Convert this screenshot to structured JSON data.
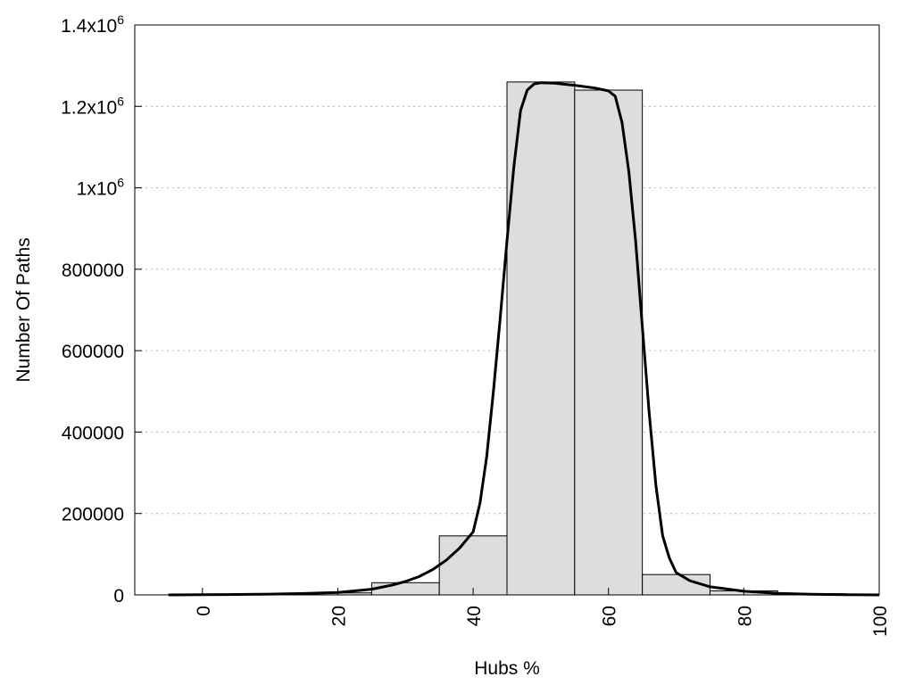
{
  "chart_data": {
    "type": "bar",
    "title": "",
    "xlabel": "Hubs %",
    "ylabel": "Number Of Paths",
    "xlim": [
      -10,
      100
    ],
    "ylim": [
      0,
      1400000
    ],
    "grid": "horizontal dotted",
    "bar_color": "#dddddd",
    "x_ticks": [
      {
        "value": 0,
        "label": "0"
      },
      {
        "value": 20,
        "label": "20"
      },
      {
        "value": 40,
        "label": "40"
      },
      {
        "value": 60,
        "label": "60"
      },
      {
        "value": 80,
        "label": "80"
      },
      {
        "value": 100,
        "label": "100"
      }
    ],
    "y_ticks": [
      {
        "value": 0,
        "base": "0",
        "exp": ""
      },
      {
        "value": 200000,
        "base": "200000",
        "exp": ""
      },
      {
        "value": 400000,
        "base": "400000",
        "exp": ""
      },
      {
        "value": 600000,
        "base": "600000",
        "exp": ""
      },
      {
        "value": 800000,
        "base": "800000",
        "exp": ""
      },
      {
        "value": 1000000,
        "base": "1x10",
        "exp": "6"
      },
      {
        "value": 1200000,
        "base": "1.2x10",
        "exp": "6"
      },
      {
        "value": 1400000,
        "base": "1.4x10",
        "exp": "6"
      }
    ],
    "bins": [
      {
        "start": -5,
        "end": 5,
        "value": 2000
      },
      {
        "start": 5,
        "end": 15,
        "value": 2000
      },
      {
        "start": 15,
        "end": 25,
        "value": 5000
      },
      {
        "start": 25,
        "end": 35,
        "value": 30000
      },
      {
        "start": 35,
        "end": 45,
        "value": 145000
      },
      {
        "start": 45,
        "end": 55,
        "value": 1260000
      },
      {
        "start": 55,
        "end": 65,
        "value": 1240000
      },
      {
        "start": 65,
        "end": 75,
        "value": 50000
      },
      {
        "start": 75,
        "end": 85,
        "value": 10000
      },
      {
        "start": 85,
        "end": 95,
        "value": 3000
      },
      {
        "start": 95,
        "end": 100,
        "value": 2000
      }
    ],
    "curve": {
      "x": [
        -5,
        0,
        5,
        10,
        15,
        20,
        25,
        28,
        30,
        32,
        34,
        36,
        38,
        40,
        41,
        42,
        43,
        44,
        45,
        46,
        47,
        48,
        49,
        50,
        52,
        55,
        58,
        60,
        61,
        62,
        63,
        64,
        65,
        66,
        67,
        68,
        69,
        70,
        72,
        75,
        80,
        85,
        90,
        95,
        100
      ],
      "y": [
        0,
        500,
        1000,
        2000,
        3500,
        6000,
        14000,
        24000,
        33000,
        45000,
        62000,
        85000,
        115000,
        155000,
        225000,
        340000,
        500000,
        680000,
        870000,
        1050000,
        1190000,
        1240000,
        1255000,
        1258000,
        1257000,
        1252000,
        1245000,
        1238000,
        1225000,
        1160000,
        1040000,
        870000,
        660000,
        450000,
        270000,
        145000,
        90000,
        55000,
        35000,
        20000,
        9000,
        4000,
        1500,
        500,
        0
      ]
    }
  }
}
